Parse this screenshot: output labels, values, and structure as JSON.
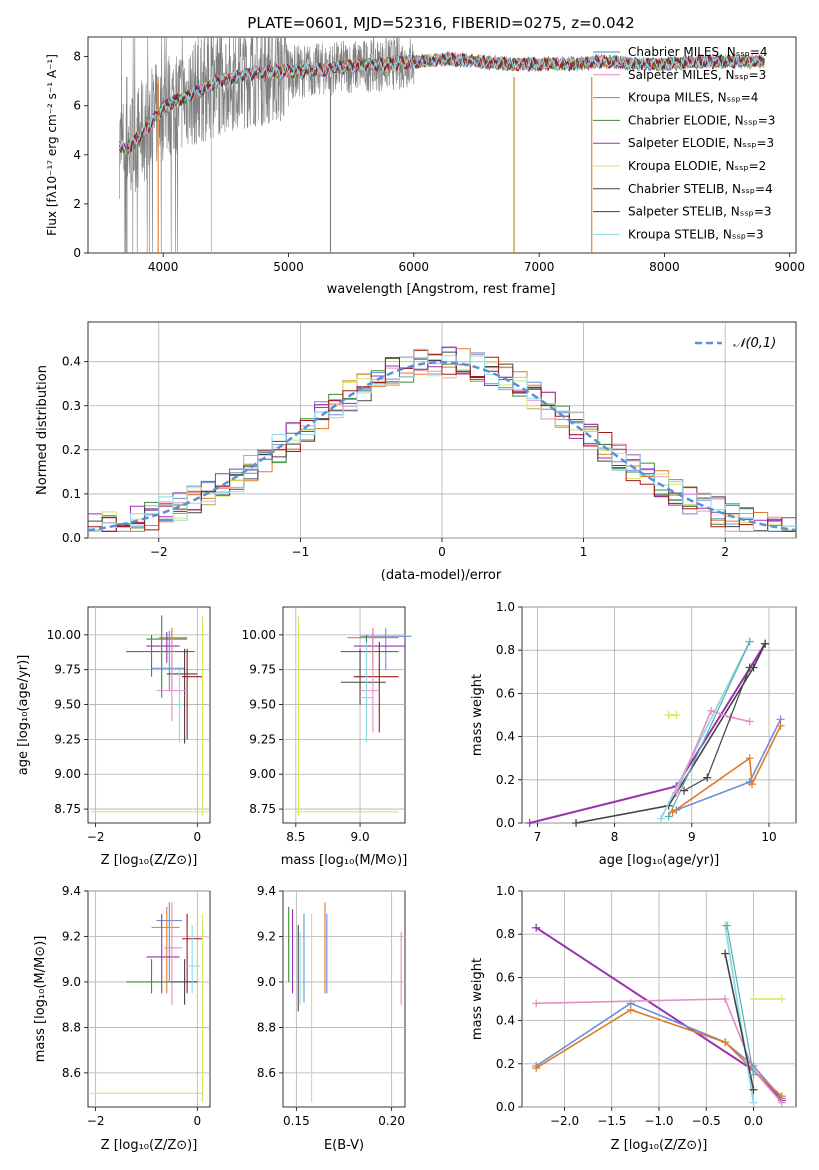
{
  "title": "PLATE=0601, MJD=52316, FIBERID=0275, z=0.042",
  "chart_data": [
    {
      "type": "line",
      "panel": "spectrum",
      "xlabel": "wavelength [Angstrom, rest frame]",
      "ylabel": "Flux [fλ10⁻¹⁷ erg cm⁻² s⁻¹ A⁻¹]",
      "xlim": [
        3400,
        9050
      ],
      "ylim": [
        0,
        8.8
      ],
      "xticks": [
        4000,
        5000,
        6000,
        7000,
        8000,
        9000
      ],
      "yticks": [
        0,
        2,
        4,
        6,
        8
      ],
      "legend_position": "right",
      "legend": [
        {
          "label": "Chabrier MILES, N_SSP=4",
          "color": "#4a86c8"
        },
        {
          "label": "Salpeter MILES, N_SSP=3",
          "color": "#e58dc6"
        },
        {
          "label": "Kroupa MILES, N_SSP=4",
          "color": "#c47e1b"
        },
        {
          "label": "Chabrier ELODIE, N_SSP=3",
          "color": "#3a8a3a"
        },
        {
          "label": "Salpeter ELODIE, N_SSP=3",
          "color": "#9b30b0"
        },
        {
          "label": "Kroupa ELODIE, N_SSP=2",
          "color": "#d7e85a"
        },
        {
          "label": "Chabrier STELIB, N_SSP=4",
          "color": "#444444"
        },
        {
          "label": "Salpeter STELIB, N_SSP=3",
          "color": "#a31818"
        },
        {
          "label": "Kroupa STELIB, N_SSP=3",
          "color": "#8fd8e8"
        }
      ],
      "continuum": {
        "x": [
          3650,
          3700,
          3800,
          3900,
          4000,
          4100,
          4200,
          4300,
          4400,
          4500,
          4700,
          4900,
          5100,
          5300,
          5500,
          5800,
          6000,
          6300,
          6500,
          6800,
          7000,
          7300,
          7500,
          7800,
          8000,
          8300,
          8500,
          8800
        ],
        "y": [
          4.4,
          4.2,
          4.7,
          5.3,
          5.9,
          6.2,
          6.4,
          6.6,
          6.9,
          7.1,
          7.3,
          7.4,
          7.4,
          7.5,
          7.6,
          7.7,
          7.8,
          7.9,
          7.8,
          7.7,
          7.7,
          7.7,
          7.8,
          7.7,
          7.7,
          7.8,
          7.8,
          7.8
        ]
      }
    },
    {
      "type": "histogram",
      "panel": "residuals",
      "xlabel": "(data-model)/error",
      "ylabel": "Normed distribution",
      "xlim": [
        -2.5,
        2.5
      ],
      "ylim": [
        0,
        0.49
      ],
      "xticks": [
        -2,
        -1,
        0,
        1,
        2
      ],
      "yticks": [
        0.0,
        0.1,
        0.2,
        0.3,
        0.4
      ],
      "legend_position": "top-right",
      "reference_label": "𝒩(0,1)",
      "reference_color": "#5b8fd8"
    },
    {
      "type": "scatter",
      "panel": "Z-age",
      "xlabel": "Z [log₁₀(Z/Z⊙)]",
      "ylabel": "age  [log₁₀(age/yr)]",
      "xlim": [
        -2.15,
        0.25
      ],
      "ylim": [
        8.65,
        10.2
      ],
      "xticks": [
        -2,
        0
      ],
      "yticks": [
        8.75,
        9.0,
        9.25,
        9.5,
        9.75,
        10.0
      ]
    },
    {
      "type": "scatter",
      "panel": "mass-age",
      "xlabel": "mass [log₁₀(M/M⊙)]",
      "xlim": [
        8.4,
        9.35
      ],
      "ylim": [
        8.65,
        10.2
      ],
      "xticks": [
        8.5,
        9.0
      ],
      "yticks": [
        8.75,
        9.0,
        9.25,
        9.5,
        9.75,
        10.0
      ]
    },
    {
      "type": "line",
      "panel": "age-weight",
      "xlabel": "age  [log₁₀(age/yr)]",
      "ylabel": "mass weight",
      "xlim": [
        6.8,
        10.35
      ],
      "ylim": [
        0,
        1
      ],
      "xticks": [
        7,
        8,
        9,
        10
      ],
      "yticks": [
        0.0,
        0.2,
        0.4,
        0.6,
        0.8,
        1.0
      ]
    },
    {
      "type": "scatter",
      "panel": "Z-mass",
      "xlabel": "Z [log₁₀(Z/Z⊙)]",
      "ylabel": "mass [log₁₀(M/M⊙)]",
      "xlim": [
        -2.15,
        0.25
      ],
      "ylim": [
        8.45,
        9.4
      ],
      "xticks": [
        -2,
        0
      ],
      "yticks": [
        8.6,
        8.8,
        9.0,
        9.2,
        9.4
      ]
    },
    {
      "type": "scatter",
      "panel": "EBV-mass",
      "xlabel": "E(B-V)",
      "xlim": [
        0.143,
        0.207
      ],
      "ylim": [
        8.45,
        9.4
      ],
      "xticks": [
        0.15,
        0.2
      ],
      "yticks": [
        8.6,
        8.8,
        9.0,
        9.2,
        9.4
      ]
    },
    {
      "type": "line",
      "panel": "Z-weight",
      "xlabel": "Z [log₁₀(Z/Z⊙)]",
      "ylabel": "mass weight",
      "xlim": [
        -2.45,
        0.45
      ],
      "ylim": [
        0,
        1
      ],
      "xticks": [
        -2.0,
        -1.5,
        -1.0,
        -0.5,
        0.0
      ],
      "yticks": [
        0.0,
        0.2,
        0.4,
        0.6,
        0.8,
        1.0
      ]
    }
  ],
  "tick_text": {
    "spec_x": [
      "4000",
      "5000",
      "6000",
      "7000",
      "8000",
      "9000"
    ],
    "spec_y": [
      "0",
      "2",
      "4",
      "6",
      "8"
    ],
    "hist_x": [
      "−2",
      "−1",
      "0",
      "1",
      "2"
    ],
    "hist_y": [
      "0.0",
      "0.1",
      "0.2",
      "0.3",
      "0.4"
    ],
    "zage_x": [
      "−2",
      "0"
    ],
    "age_y": [
      "8.75",
      "9.00",
      "9.25",
      "9.50",
      "9.75",
      "10.00"
    ],
    "massage_x": [
      "8.5",
      "9.0"
    ],
    "aw_x": [
      "7",
      "8",
      "9",
      "10"
    ],
    "w_y": [
      "0.0",
      "0.2",
      "0.4",
      "0.6",
      "0.8",
      "1.0"
    ],
    "zmass_x": [
      "−2",
      "0"
    ],
    "mass_y": [
      "8.6",
      "8.8",
      "9.0",
      "9.2",
      "9.4"
    ],
    "ebv_x": [
      "0.15",
      "0.20"
    ],
    "zw_x": [
      "−2.0",
      "−1.5",
      "−1.0",
      "−0.5",
      "0.0"
    ]
  },
  "colors": {
    "chabrier_miles": "#6a8fd8",
    "salpeter_miles": "#e58dc6",
    "kroupa_miles": "#e07b28",
    "chabrier_elodie": "#3a8a3a",
    "salpeter_elodie": "#9b30b0",
    "kroupa_elodie": "#d7e85a",
    "chabrier_stelib": "#444444",
    "salpeter_stelib": "#a31818",
    "kroupa_stelib": "#8fd8e8"
  }
}
